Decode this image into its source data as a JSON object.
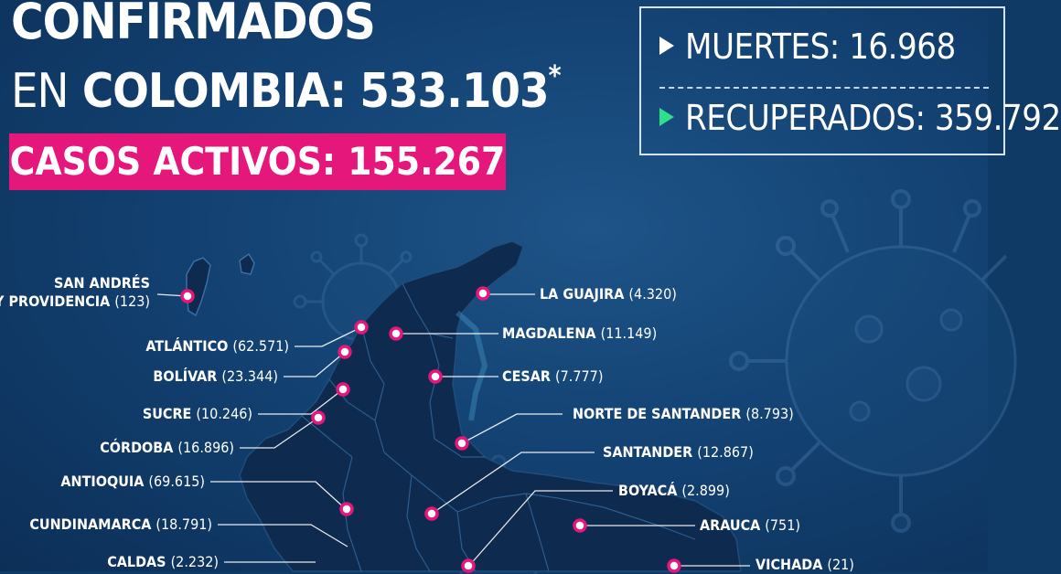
{
  "header": {
    "line1": "CONFIRMADOS",
    "line2_prefix": "EN",
    "line2_country": "COLOMBIA:",
    "confirmed": "533.103",
    "asterisk": "*",
    "active_label": "CASOS ACTIVOS:",
    "active_value": "155.267"
  },
  "stats": {
    "deaths_label": "MUERTES:",
    "deaths_value": "16.968",
    "recovered_label": "RECUPERADOS:",
    "recovered_value": "359.792"
  },
  "colors": {
    "background": "#134273",
    "map_fill": "#0e2a4e",
    "accent_pink": "#e6177a",
    "recovered_arrow": "#2ee08a"
  },
  "departments": [
    {
      "name": "SAN ANDRÉS",
      "name2": "Y PROVIDENCIA",
      "cases": "(123)"
    },
    {
      "name": "ATLÁNTICO",
      "cases": "(62.571)"
    },
    {
      "name": "BOLÍVAR",
      "cases": "(23.344)"
    },
    {
      "name": "SUCRE",
      "cases": "(10.246)"
    },
    {
      "name": "CÓRDOBA",
      "cases": "(16.896)"
    },
    {
      "name": "ANTIOQUIA",
      "cases": "(69.615)"
    },
    {
      "name": "CUNDINAMARCA",
      "cases": "(18.791)"
    },
    {
      "name": "CALDAS",
      "cases": "(2.232)"
    },
    {
      "name": "LA GUAJIRA",
      "cases": "(4.320)"
    },
    {
      "name": "MAGDALENA",
      "cases": "(11.149)"
    },
    {
      "name": "CESAR",
      "cases": "(7.777)"
    },
    {
      "name": "NORTE DE SANTANDER",
      "cases": "(8.793)"
    },
    {
      "name": "SANTANDER",
      "cases": "(12.867)"
    },
    {
      "name": "BOYACÁ",
      "cases": "(2.899)"
    },
    {
      "name": "ARAUCA",
      "cases": "(751)"
    },
    {
      "name": "VICHADA",
      "cases": "(21)"
    }
  ]
}
